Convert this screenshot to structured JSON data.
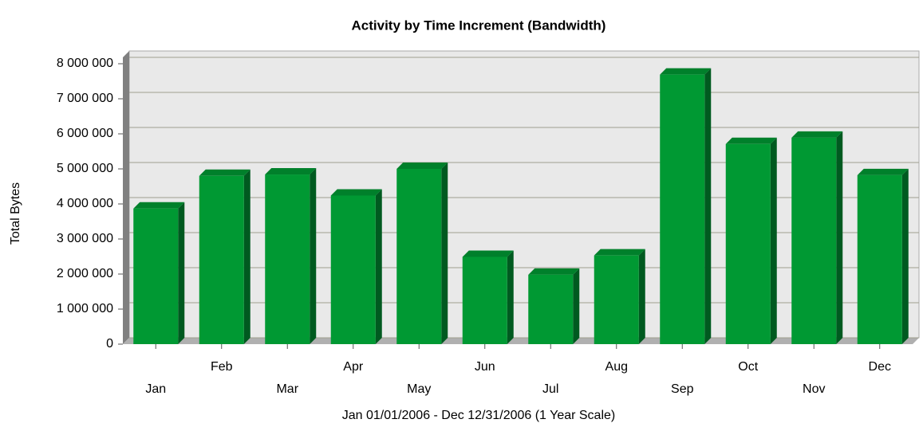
{
  "chart_data": {
    "type": "bar",
    "title": "Activity by Time Increment (Bandwidth)",
    "x_label": "Jan 01/01/2006 - Dec 12/31/2006 (1 Year Scale)",
    "y_label": "Total Bytes",
    "categories": [
      "Jan",
      "Feb",
      "Mar",
      "Apr",
      "May",
      "Jun",
      "Jul",
      "Aug",
      "Sep",
      "Oct",
      "Nov",
      "Dec"
    ],
    "values": [
      3870000,
      4800000,
      4840000,
      4240000,
      5000000,
      2490000,
      1980000,
      2530000,
      7690000,
      5710000,
      5890000,
      4820000
    ],
    "color": "#009933",
    "ylim": [
      0,
      8000000
    ],
    "yticks": [
      0,
      {
        "value": 1000000,
        "label": "1 000 000"
      },
      {
        "value": 2000000,
        "label": "2 000 000"
      },
      {
        "value": 3000000,
        "label": "3 000 000"
      },
      {
        "value": 4000000,
        "label": "4 000 000"
      },
      {
        "value": 5000000,
        "label": "5 000 000"
      },
      {
        "value": 6000000,
        "label": "6 000 000"
      },
      {
        "value": 7000000,
        "label": "7 000 000"
      },
      {
        "value": 8000000,
        "label": "8 000 000"
      }
    ],
    "grid": true
  }
}
